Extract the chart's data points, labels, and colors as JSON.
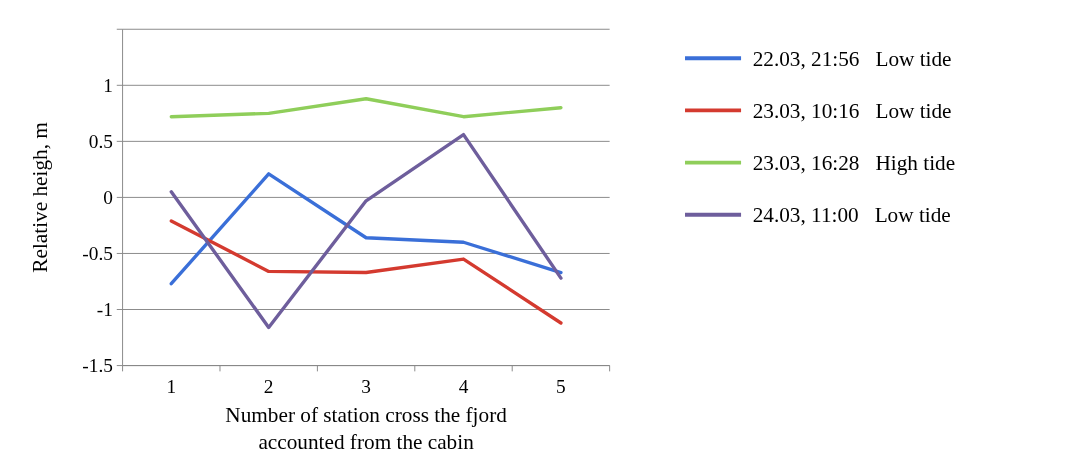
{
  "chart_data": {
    "type": "line",
    "xlabel": "Number of station cross the fjord\naccounted from the cabin",
    "ylabel": "Relative heigh, m",
    "categories": [
      "1",
      "2",
      "3",
      "4",
      "5"
    ],
    "series": [
      {
        "name": "22.03, 21:56   Low tide",
        "color": "#3a6fd8",
        "values": [
          -0.77,
          0.21,
          -0.36,
          -0.4,
          -0.67
        ]
      },
      {
        "name": "23.03, 10:16   Low tide",
        "color": "#d43a2f",
        "values": [
          -0.21,
          -0.66,
          -0.67,
          -0.55,
          -1.12
        ]
      },
      {
        "name": "23.03, 16:28   High tide",
        "color": "#8fce5a",
        "values": [
          0.72,
          0.75,
          0.88,
          0.72,
          0.8
        ]
      },
      {
        "name": "24.03, 11:00   Low tide",
        "color": "#6e5e9c",
        "values": [
          0.05,
          -1.16,
          -0.03,
          0.56,
          -0.72
        ]
      }
    ],
    "ylim": [
      -1.5,
      1.5
    ],
    "yticks": [
      -1.5,
      -1,
      -0.5,
      0,
      0.5,
      1,
      {
        "value": 1.5,
        "label": null
      }
    ],
    "grid": "y",
    "legend": "right",
    "marker": "none",
    "line_style": "solid"
  }
}
